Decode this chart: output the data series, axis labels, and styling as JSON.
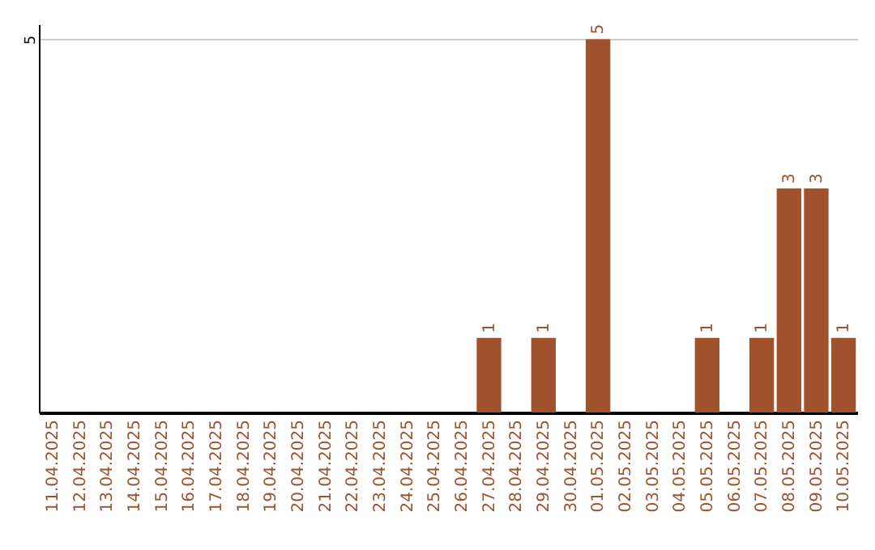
{
  "chart_data": {
    "type": "bar",
    "categories": [
      "11.04.2025",
      "12.04.2025",
      "13.04.2025",
      "14.04.2025",
      "15.04.2025",
      "16.04.2025",
      "17.04.2025",
      "18.04.2025",
      "19.04.2025",
      "20.04.2025",
      "21.04.2025",
      "22.04.2025",
      "23.04.2025",
      "24.04.2025",
      "25.04.2025",
      "26.04.2025",
      "27.04.2025",
      "28.04.2025",
      "29.04.2025",
      "30.04.2025",
      "01.05.2025",
      "02.05.2025",
      "03.05.2025",
      "04.05.2025",
      "05.05.2025",
      "06.05.2025",
      "07.05.2025",
      "08.05.2025",
      "09.05.2025",
      "10.05.2025"
    ],
    "values": [
      null,
      null,
      null,
      null,
      null,
      null,
      null,
      null,
      null,
      null,
      null,
      null,
      null,
      null,
      null,
      null,
      1,
      null,
      1,
      null,
      5,
      null,
      null,
      null,
      1,
      null,
      1,
      3,
      3,
      1
    ],
    "value_labels": [
      null,
      null,
      null,
      null,
      null,
      null,
      null,
      null,
      null,
      null,
      null,
      null,
      null,
      null,
      null,
      null,
      "1",
      null,
      "1",
      null,
      "5",
      null,
      null,
      null,
      "1",
      null,
      "1",
      "3",
      "3",
      "1"
    ],
    "color": "#a0522d",
    "ylim": [
      0,
      5.2
    ],
    "yticks": [
      5
    ],
    "grid": "y"
  }
}
